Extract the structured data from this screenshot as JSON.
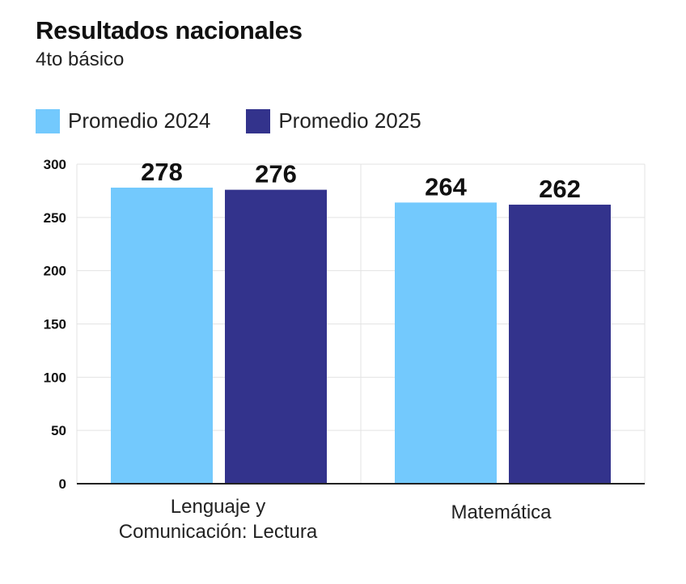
{
  "chart_data": {
    "type": "bar",
    "title": "Resultados nacionales",
    "subtitle": "4to básico",
    "categories": [
      [
        "Lenguaje y",
        "Comunicación: Lectura"
      ],
      [
        "Matemática"
      ]
    ],
    "series": [
      {
        "name": "Promedio 2024",
        "color": "#73c9fd",
        "values": [
          278,
          264
        ]
      },
      {
        "name": "Promedio 2025",
        "color": "#33338c",
        "values": [
          276,
          262
        ]
      }
    ],
    "y_ticks": [
      "0",
      "50",
      "100",
      "150",
      "200",
      "250",
      "300"
    ],
    "ylim": [
      0,
      300
    ],
    "grid": true,
    "legend_position": "top-left",
    "xlabel": "",
    "ylabel": ""
  }
}
